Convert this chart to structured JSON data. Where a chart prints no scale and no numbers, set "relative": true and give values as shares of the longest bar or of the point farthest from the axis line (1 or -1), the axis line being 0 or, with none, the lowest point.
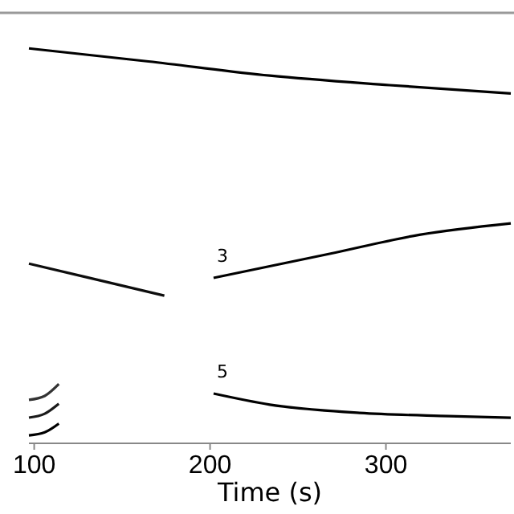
{
  "chart_data": {
    "type": "line",
    "relative": true,
    "xlabel": "Time (s)",
    "xlim": [
      97,
      371
    ],
    "xticks": [
      100,
      200,
      300
    ],
    "series": [
      {
        "color": "#000000",
        "x": [
          97,
          165,
          234,
          302,
          371
        ],
        "values": [
          1,
          0.967,
          0.931,
          0.907,
          0.886
        ]
      },
      {
        "color": "#0d0d0d",
        "x": [
          97,
          135,
          174
        ],
        "values": [
          0.455,
          0.415,
          0.374
        ]
      },
      {
        "name": "3",
        "color": "#000000",
        "x": [
          202,
          268,
          319,
          371
        ],
        "values": [
          0.419,
          0.48,
          0.528,
          0.557
        ]
      },
      {
        "name": "5",
        "color": "#000000",
        "x": [
          202,
          234,
          285,
          336,
          371
        ],
        "values": [
          0.126,
          0.098,
          0.077,
          0.069,
          0.065
        ]
      },
      {
        "color": "#000000",
        "x": [
          97,
          106,
          114
        ],
        "values": [
          0.02,
          0.028,
          0.05
        ]
      },
      {
        "color": "#1a1a1a",
        "x": [
          97,
          106,
          114
        ],
        "values": [
          0.065,
          0.075,
          0.1
        ]
      },
      {
        "color": "#333333",
        "x": [
          97,
          106,
          114
        ],
        "values": [
          0.11,
          0.12,
          0.15
        ]
      }
    ]
  }
}
